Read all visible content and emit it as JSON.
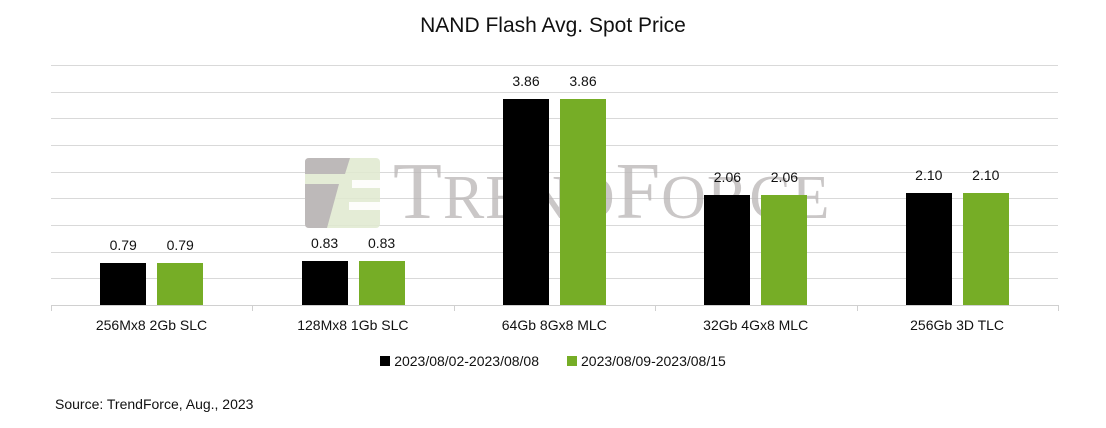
{
  "chart_data": {
    "type": "bar",
    "title": "NAND Flash Avg. Spot Price",
    "xlabel": "",
    "ylabel": "",
    "ylim": [
      0,
      4.5
    ],
    "grid": true,
    "grid_step": 0.5,
    "y_axis_visible": false,
    "legend_position": "bottom",
    "categories": [
      "256Mx8 2Gb SLC",
      "128Mx8 1Gb SLC",
      "64Gb 8Gx8 MLC",
      "32Gb 4Gx8 MLC",
      "256Gb 3D TLC"
    ],
    "series": [
      {
        "name": "2023/08/02-2023/08/08",
        "color": "#000000",
        "values": [
          0.79,
          0.83,
          3.86,
          2.06,
          2.1
        ],
        "labels": [
          "0.79",
          "0.83",
          "3.86",
          "2.06",
          "2.10"
        ]
      },
      {
        "name": "2023/08/09-2023/08/15",
        "color": "#76AD26",
        "values": [
          0.79,
          0.83,
          3.86,
          2.06,
          2.1
        ],
        "labels": [
          "0.79",
          "0.83",
          "3.86",
          "2.06",
          "2.10"
        ]
      }
    ],
    "source": "Source: TrendForce, Aug., 2023",
    "watermark": "TRENDFORCE"
  }
}
